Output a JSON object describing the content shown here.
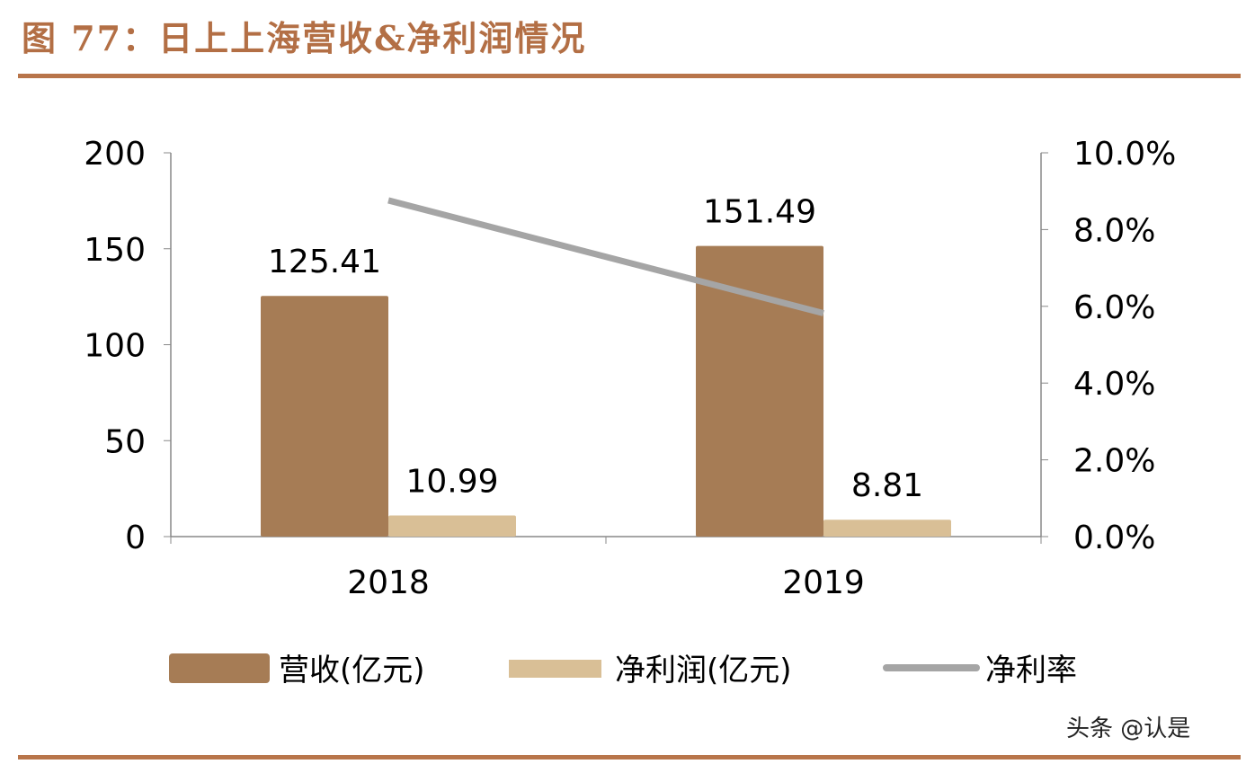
{
  "title": "图 77：日上上海营收&净利润情况",
  "watermark": "头条 @认是",
  "colors": {
    "title": "#b36f45",
    "rule": "#b8754a",
    "revenue": "#a67c55",
    "net_profit": "#d9bf96",
    "net_margin": "#a5a5a5"
  },
  "chart_data": {
    "type": "bar",
    "categories": [
      "2018",
      "2019"
    ],
    "series": [
      {
        "name": "营收(亿元)",
        "type": "bar",
        "axis": "left",
        "values": [
          125.41,
          151.49
        ],
        "labels": [
          "125.41",
          "151.49"
        ]
      },
      {
        "name": "净利润(亿元)",
        "type": "bar",
        "axis": "left",
        "values": [
          10.99,
          8.81
        ],
        "labels": [
          "10.99",
          "8.81"
        ]
      },
      {
        "name": "净利率",
        "type": "line",
        "axis": "right",
        "values": [
          8.76,
          5.82
        ]
      }
    ],
    "left_axis": {
      "ylim": [
        0,
        200
      ],
      "ticks": [
        "0",
        "50",
        "100",
        "150",
        "200"
      ]
    },
    "right_axis": {
      "ylim": [
        0,
        10
      ],
      "ticks": [
        "0.0%",
        "2.0%",
        "4.0%",
        "6.0%",
        "8.0%",
        "10.0%"
      ]
    },
    "grid": false,
    "legend": "bottom"
  }
}
